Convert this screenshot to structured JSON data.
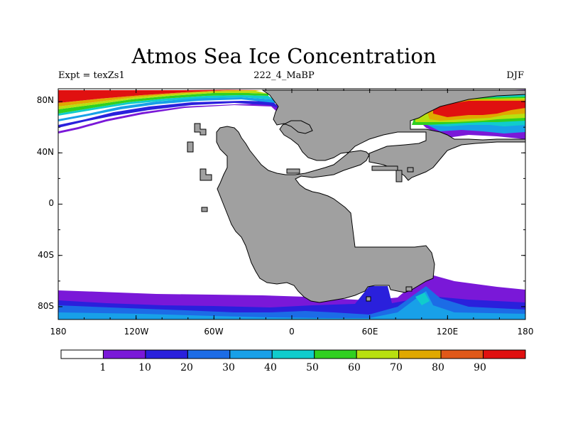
{
  "title": "Atmos Sea Ice Concentration",
  "subtitle_left": "Expt = texZs1",
  "subtitle_center": "222_4_MaBP",
  "subtitle_right": "DJF",
  "colors": {
    "land": "#a0a0a0",
    "ocean": "#ffffff",
    "scale": [
      "#ffffff",
      "#7a18d8",
      "#2a20dc",
      "#1c6ce6",
      "#18a0e8",
      "#10cccc",
      "#30d020",
      "#b8e010",
      "#e0a800",
      "#e05818",
      "#e01010"
    ]
  },
  "chart_data": {
    "type": "heatmap",
    "variable": "Sea Ice Concentration",
    "units": "%",
    "season": "DJF",
    "experiment": "texZs1",
    "period": "222_4_MaBP",
    "x_range": [
      -180,
      180
    ],
    "y_range": [
      -90,
      90
    ],
    "y_ticks": [
      "80N",
      "40N",
      "0",
      "40S",
      "80S"
    ],
    "y_tick_values": [
      80,
      40,
      0,
      -40,
      -80
    ],
    "x_ticks": [
      "180",
      "120W",
      "60W",
      "0",
      "60E",
      "120E",
      "180"
    ],
    "x_tick_values": [
      -180,
      -120,
      -60,
      0,
      60,
      120,
      180
    ],
    "colorbar_levels": [
      "1",
      "10",
      "20",
      "30",
      "40",
      "50",
      "60",
      "70",
      "80",
      "90"
    ]
  }
}
